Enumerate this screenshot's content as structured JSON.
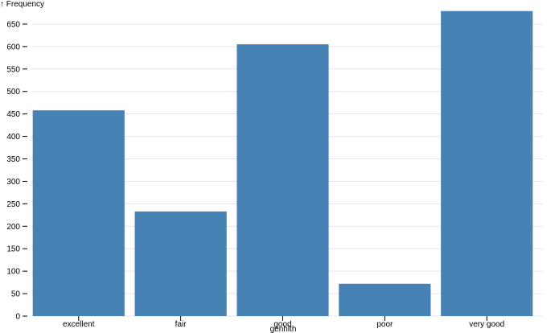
{
  "chart_data": {
    "type": "bar",
    "y_label": "↑ Frequency",
    "x_label": "genhlth",
    "categories": [
      "excellent",
      "fair",
      "good",
      "poor",
      "very good"
    ],
    "values": [
      458,
      233,
      605,
      72,
      679
    ],
    "color": "#4682b4",
    "ylim": [
      0,
      680
    ],
    "yticks": [
      0,
      50,
      100,
      150,
      200,
      250,
      300,
      350,
      400,
      450,
      500,
      550,
      600,
      650
    ],
    "grid": true
  }
}
